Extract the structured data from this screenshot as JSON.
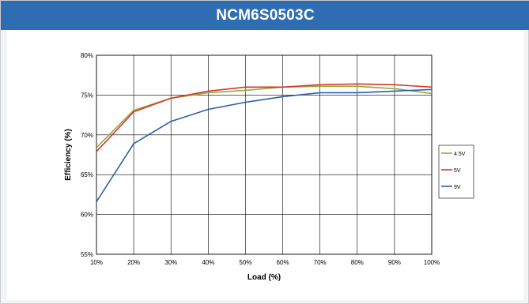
{
  "header": {
    "title": "NCM6S0503C"
  },
  "chart_data": {
    "type": "line",
    "title": "NCM6S0503C",
    "xlabel": "Load (%)",
    "ylabel": "Efficiency (%)",
    "x": [
      10,
      20,
      30,
      40,
      50,
      60,
      70,
      80,
      90,
      100
    ],
    "x_tick_labels": [
      "10%",
      "20%",
      "30%",
      "40%",
      "50%",
      "60%",
      "70%",
      "80%",
      "90%",
      "100%"
    ],
    "y_ticks": [
      55,
      60,
      65,
      70,
      75,
      80
    ],
    "y_tick_labels": [
      "55%",
      "60%",
      "65%",
      "70%",
      "75%",
      "80%"
    ],
    "xlim": [
      10,
      100
    ],
    "ylim": [
      55,
      80
    ],
    "grid": true,
    "legend_position": "right",
    "series": [
      {
        "name": "4.5V",
        "color": "#8fae3a",
        "values": [
          68.4,
          73.1,
          74.6,
          75.3,
          75.6,
          76.0,
          76.1,
          76.1,
          75.8,
          75.2
        ]
      },
      {
        "name": "5V",
        "color": "#d9362b",
        "values": [
          67.9,
          72.9,
          74.6,
          75.5,
          76.0,
          76.0,
          76.3,
          76.4,
          76.3,
          76.0
        ]
      },
      {
        "name": "9V",
        "color": "#2b5ea8",
        "values": [
          61.6,
          68.9,
          71.7,
          73.2,
          74.1,
          74.8,
          75.3,
          75.3,
          75.5,
          75.7
        ]
      }
    ]
  }
}
